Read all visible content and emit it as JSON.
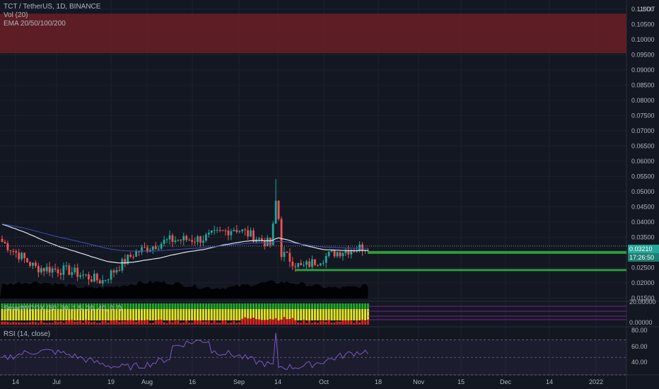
{
  "header": {
    "symbol_line": "TCT / TetherUS, 1D, BINANCE",
    "volume_line": "Vol (20)",
    "ema_line": "EMA 20/50/100/200"
  },
  "price_axis": {
    "currency": "USDT",
    "ticks": [
      "0.11000",
      "0.10500",
      "0.10000",
      "0.09500",
      "0.09000",
      "0.08500",
      "0.08000",
      "0.07500",
      "0.07000",
      "0.06500",
      "0.06000",
      "0.05500",
      "0.05000",
      "0.04500",
      "0.04000",
      "0.03500",
      "0.03000",
      "0.02500",
      "0.02000",
      "0.01500"
    ],
    "current_price": "0.03210",
    "countdown": "17:26:50"
  },
  "time_axis": {
    "ticks": [
      "14",
      "Jul",
      "19",
      "Aug",
      "16",
      "Sep",
      "14",
      "Oct",
      "18",
      "Nov",
      "15",
      "Dec",
      "14",
      "2022"
    ]
  },
  "smart_indicator": {
    "label": "SmartWCOX (50, 30, 1.5, 30, 40, 0.7)",
    "ticks": [
      "20.00000",
      "0.00000"
    ]
  },
  "rsi": {
    "label": "RSI (14, close)",
    "ticks": [
      "80.00",
      "60.00",
      "40.00"
    ]
  },
  "colors": {
    "background": "#131722",
    "up": "#26a69a",
    "down": "#ef5350",
    "resistance_zone": "#6b1f24",
    "support_line": "#2e9b3a",
    "ema_white": "#e0e3eb",
    "ema_blue": "#3f51b5",
    "rsi_line": "#7e57c2"
  },
  "chart_data": {
    "type": "candlestick",
    "title": "TCT / TetherUS, 1D, BINANCE",
    "y_range": [
      0.013,
      0.113
    ],
    "resistance_zone": [
      0.0955,
      0.1085
    ],
    "support_levels": [
      0.03,
      0.0242
    ],
    "candles_summary": [
      {
        "period": "mid-Jun",
        "close": 0.0335
      },
      {
        "period": "late-Jun",
        "close": 0.025
      },
      {
        "period": "Jul",
        "close": 0.024
      },
      {
        "period": "19 Jul",
        "close": 0.0205
      },
      {
        "period": "Aug",
        "close": 0.03
      },
      {
        "period": "16 Aug",
        "close": 0.034
      },
      {
        "period": "Sep",
        "close": 0.0345
      },
      {
        "period": "early-Sep high",
        "close": 0.038
      },
      {
        "period": "14 Sep",
        "close": 0.033
      },
      {
        "period": "late-Sep",
        "close": 0.025
      },
      {
        "period": "Oct",
        "close": 0.03
      },
      {
        "period": "current",
        "close": 0.0321
      }
    ],
    "current_price": 0.0321,
    "rsi_range": [
      30,
      80
    ],
    "rsi_last": 54
  }
}
